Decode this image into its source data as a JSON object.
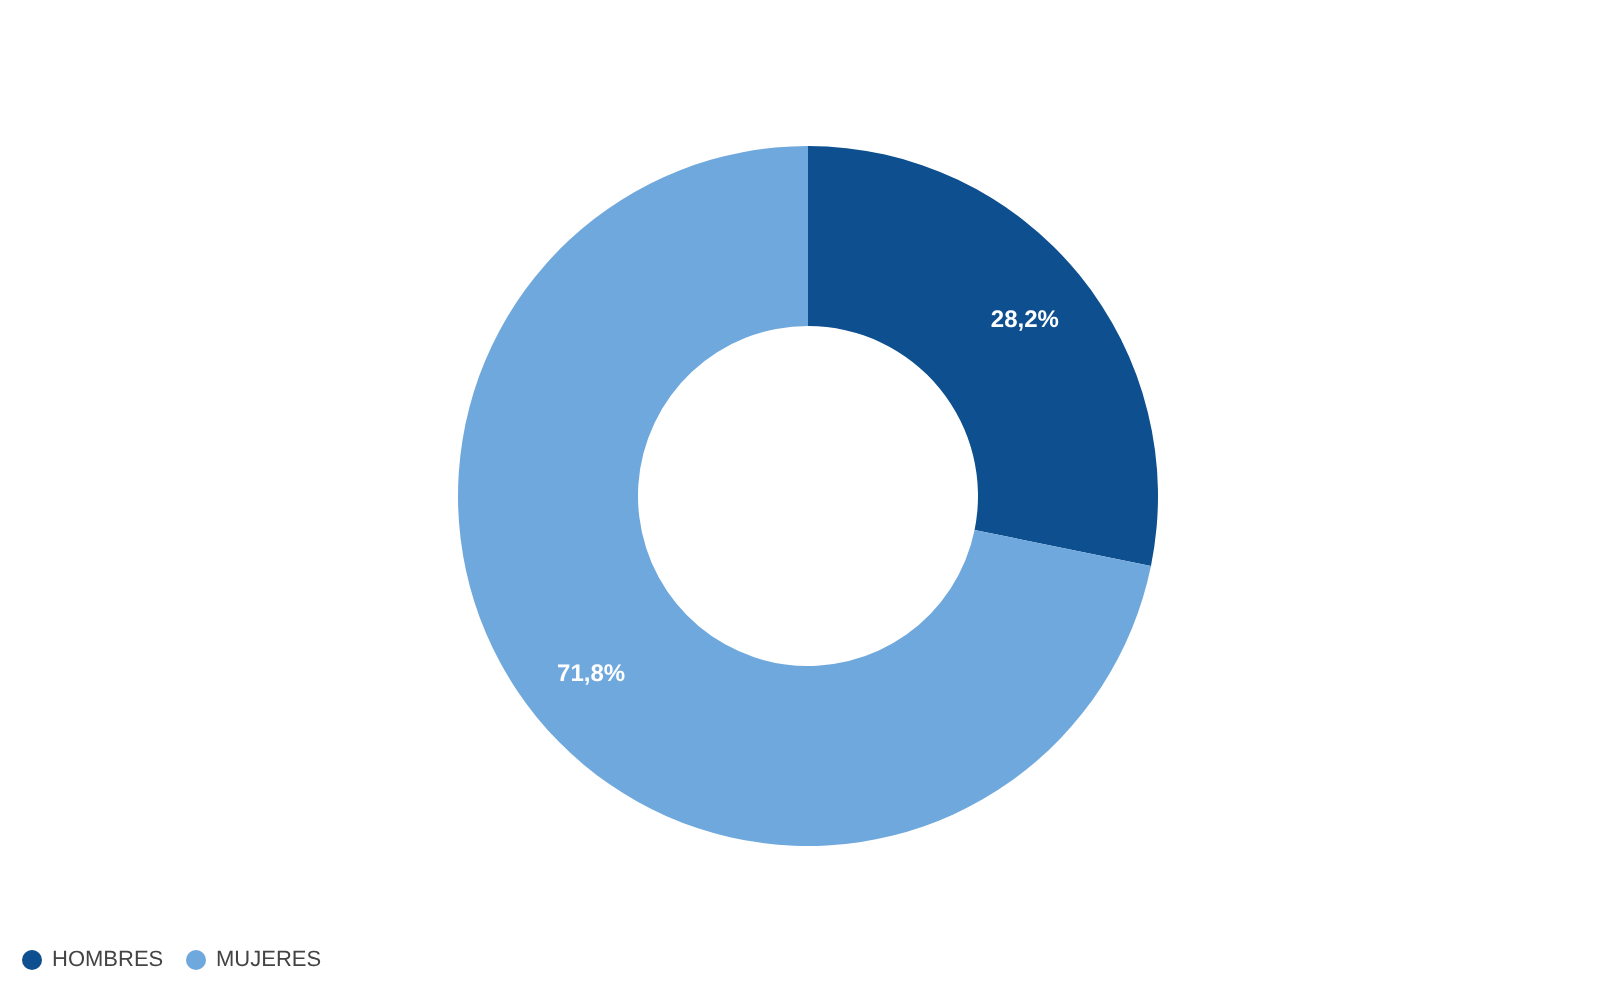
{
  "chart_data": {
    "type": "donut",
    "categories": [
      "HOMBRES",
      "MUJERES"
    ],
    "values": [
      28.2,
      71.8
    ],
    "colors": [
      "#0d4f8f",
      "#6fa8dc"
    ],
    "value_labels": [
      "28,2%",
      "71,8%"
    ],
    "legend": "bottom"
  }
}
